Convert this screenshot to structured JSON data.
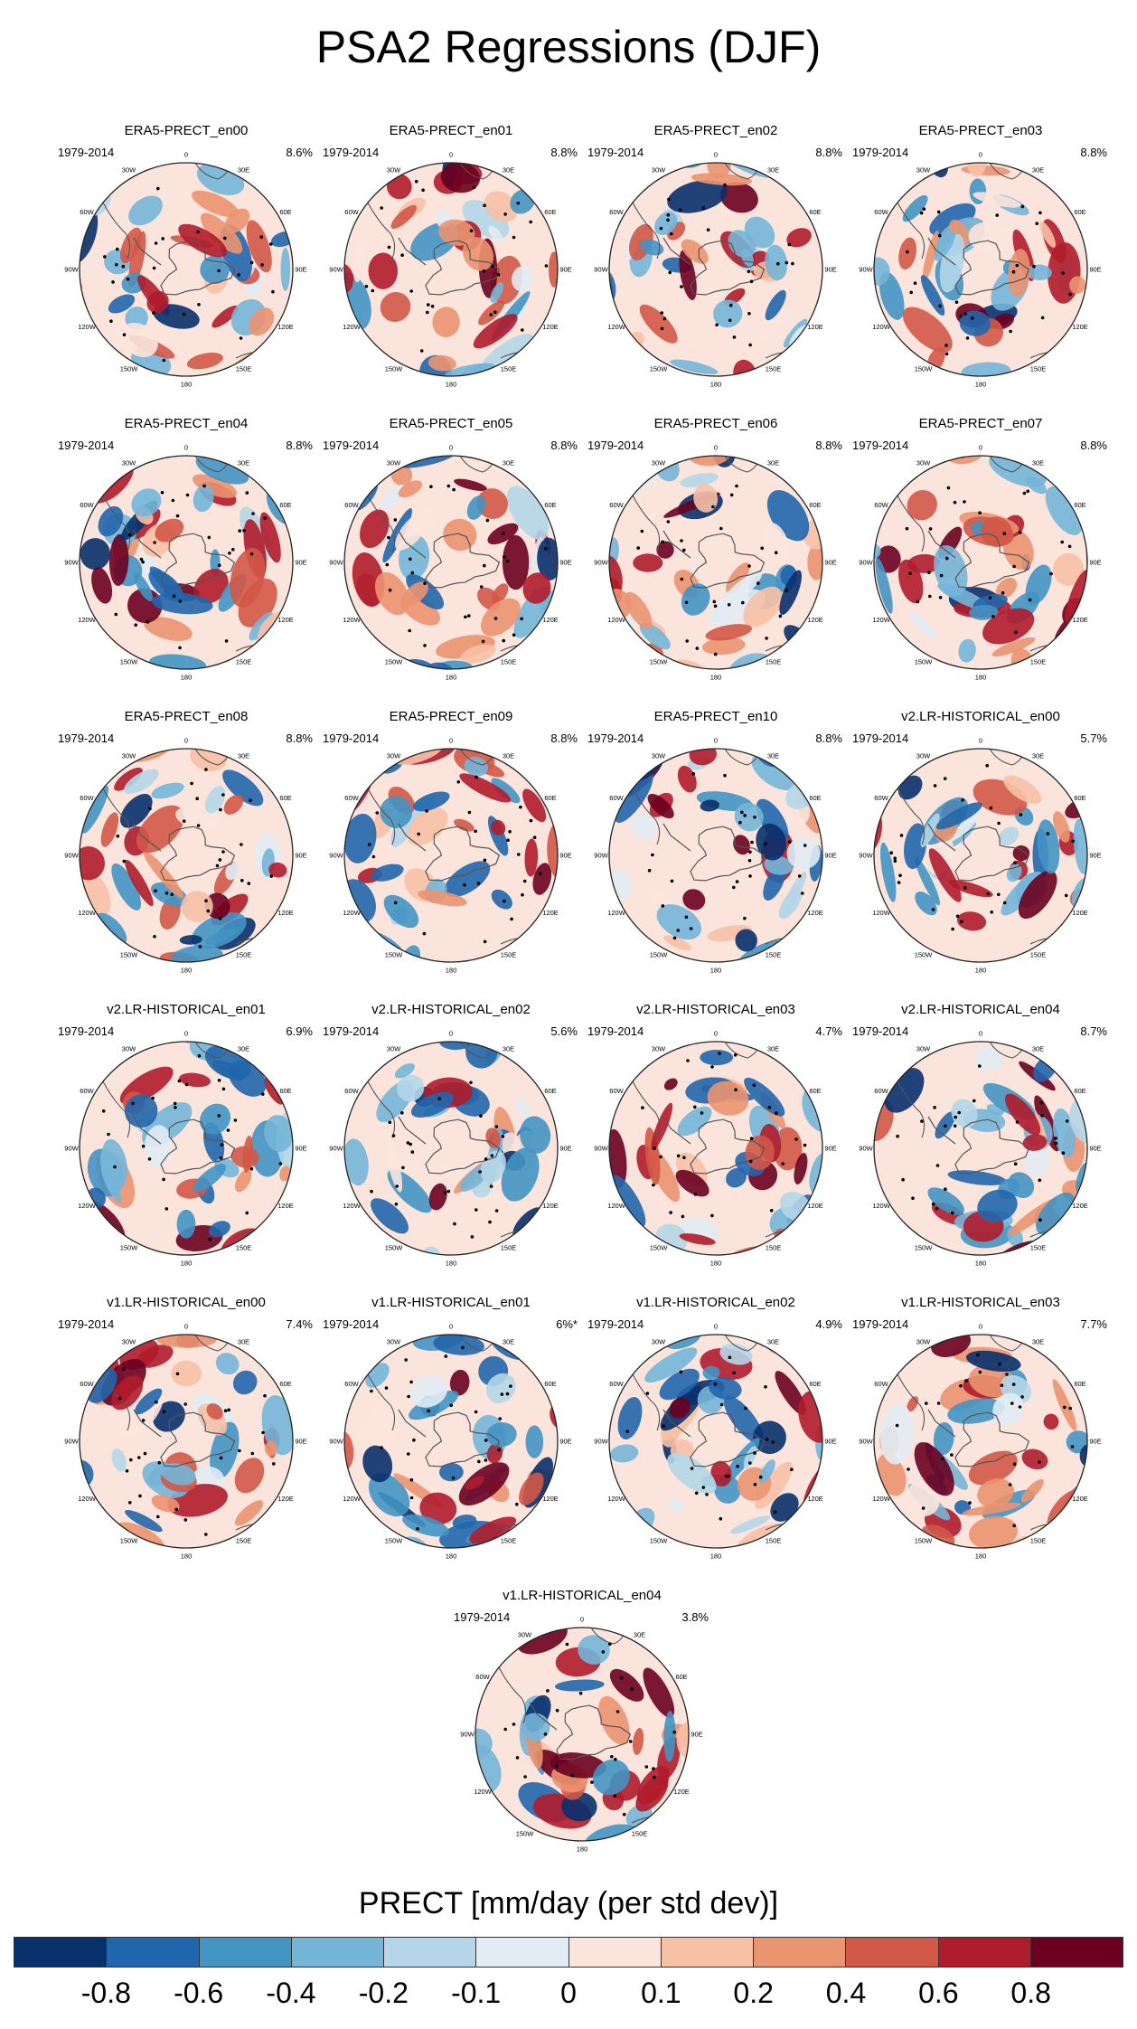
{
  "title": "PSA2 Regressions (DJF)",
  "chart_data": {
    "type": "polar-map-panels",
    "title": "PSA2 Regressions (DJF)",
    "variable": "PRECT",
    "period": "1979-2014",
    "longitude_labels": [
      "0",
      "30E",
      "60E",
      "90E",
      "120E",
      "150E",
      "180",
      "150W",
      "120W",
      "90W",
      "60W",
      "30W"
    ],
    "panels": [
      {
        "name": "ERA5-PRECT_en00",
        "period": "1979-2014",
        "variance": "8.6%",
        "seed": 11,
        "starred": false
      },
      {
        "name": "ERA5-PRECT_en01",
        "period": "1979-2014",
        "variance": "8.8%",
        "seed": 11,
        "starred": false
      },
      {
        "name": "ERA5-PRECT_en02",
        "period": "1979-2014",
        "variance": "8.8%",
        "seed": 11,
        "starred": false
      },
      {
        "name": "ERA5-PRECT_en03",
        "period": "1979-2014",
        "variance": "8.8%",
        "seed": 11,
        "starred": false
      },
      {
        "name": "ERA5-PRECT_en04",
        "period": "1979-2014",
        "variance": "8.8%",
        "seed": 11,
        "starred": false
      },
      {
        "name": "ERA5-PRECT_en05",
        "period": "1979-2014",
        "variance": "8.8%",
        "seed": 11,
        "starred": false
      },
      {
        "name": "ERA5-PRECT_en06",
        "period": "1979-2014",
        "variance": "8.8%",
        "seed": 11,
        "starred": false
      },
      {
        "name": "ERA5-PRECT_en07",
        "period": "1979-2014",
        "variance": "8.8%",
        "seed": 11,
        "starred": false
      },
      {
        "name": "ERA5-PRECT_en08",
        "period": "1979-2014",
        "variance": "8.8%",
        "seed": 11,
        "starred": false
      },
      {
        "name": "ERA5-PRECT_en09",
        "period": "1979-2014",
        "variance": "8.8%",
        "seed": 11,
        "starred": false
      },
      {
        "name": "ERA5-PRECT_en10",
        "period": "1979-2014",
        "variance": "8.8%",
        "seed": 11,
        "starred": false
      },
      {
        "name": "v2.LR-HISTORICAL_en00",
        "period": "1979-2014",
        "variance": "5.7%",
        "seed": 23,
        "starred": false
      },
      {
        "name": "v2.LR-HISTORICAL_en01",
        "period": "1979-2014",
        "variance": "6.9%",
        "seed": 37,
        "starred": false
      },
      {
        "name": "v2.LR-HISTORICAL_en02",
        "period": "1979-2014",
        "variance": "5.6%",
        "seed": 41,
        "starred": false
      },
      {
        "name": "v2.LR-HISTORICAL_en03",
        "period": "1979-2014",
        "variance": "4.7%",
        "seed": 53,
        "starred": false
      },
      {
        "name": "v2.LR-HISTORICAL_en04",
        "period": "1979-2014",
        "variance": "8.7%",
        "seed": 67,
        "starred": false
      },
      {
        "name": "v1.LR-HISTORICAL_en00",
        "period": "1979-2014",
        "variance": "7.4%",
        "seed": 71,
        "starred": false
      },
      {
        "name": "v1.LR-HISTORICAL_en01",
        "period": "1979-2014",
        "variance": "6%*",
        "seed": 83,
        "starred": true
      },
      {
        "name": "v1.LR-HISTORICAL_en02",
        "period": "1979-2014",
        "variance": "4.9%",
        "seed": 97,
        "starred": false
      },
      {
        "name": "v1.LR-HISTORICAL_en03",
        "period": "1979-2014",
        "variance": "7.7%",
        "seed": 101,
        "starred": false
      },
      {
        "name": "v1.LR-HISTORICAL_en04",
        "period": "1979-2014",
        "variance": "3.8%",
        "seed": 113,
        "starred": false
      }
    ],
    "colorbar": {
      "title": "PRECT [mm/day (per std dev)]",
      "colors": [
        "#08306b",
        "#2166ac",
        "#4393c3",
        "#74b5d8",
        "#b4d6e8",
        "#e1ecf4",
        "#fbe4dc",
        "#f7c1a6",
        "#eb9470",
        "#d25847",
        "#b01c2b",
        "#6b0020"
      ],
      "labels": [
        "-0.8",
        "-0.6",
        "-0.4",
        "-0.2",
        "-0.1",
        "0",
        "0.1",
        "0.2",
        "0.4",
        "0.6",
        "0.8"
      ]
    }
  }
}
